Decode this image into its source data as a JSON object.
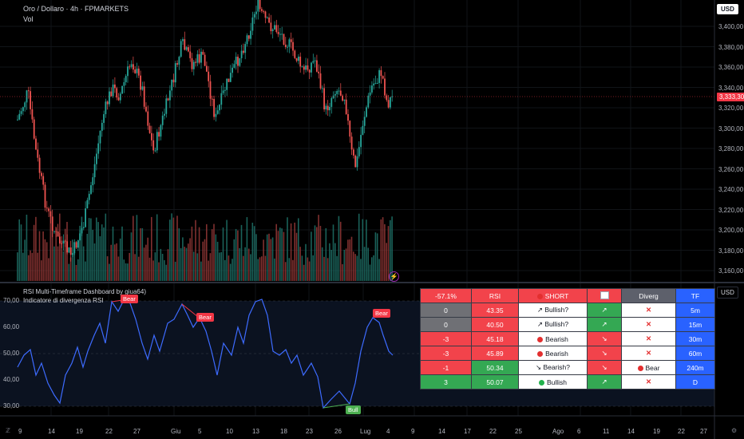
{
  "header": {
    "symbol_line": "Oro / Dollaro · 4h · FPMARKETS",
    "vol_label": "Vol"
  },
  "currency_buttons": {
    "main": "USD",
    "rsi": "USD"
  },
  "price_axis": {
    "labels": [
      "3,400,00",
      "3,380,00",
      "3,360,00",
      "3,340,00",
      "3,320,00",
      "3,300,00",
      "3,280,00",
      "3,260,00",
      "3,240,00",
      "3,220,00",
      "3,200,00",
      "3,180,00",
      "3,160,00"
    ],
    "current_price": "3,333,30"
  },
  "rsi_pane": {
    "title_line1": "RSI Multi-Timeframe Dashboard by giua64)",
    "title_line2": "Indicatore di divergenza RSI",
    "axis_labels": [
      "70,00",
      "60,00",
      "50,00",
      "40,00",
      "30,00"
    ],
    "divergence_labels": [
      {
        "text": "Bear",
        "kind": "bear"
      },
      {
        "text": "Bear",
        "kind": "bear"
      },
      {
        "text": "Bear",
        "kind": "bear"
      },
      {
        "text": "Bull",
        "kind": "bull"
      }
    ]
  },
  "time_axis": {
    "labels": [
      "9",
      "14",
      "19",
      "22",
      "27",
      "Giu",
      "5",
      "10",
      "13",
      "18",
      "23",
      "26",
      "Lug",
      "4",
      "9",
      "14",
      "17",
      "22",
      "25",
      "Ago",
      "6",
      "11",
      "14",
      "19",
      "22",
      "27"
    ]
  },
  "dashboard": {
    "header": [
      "-57.1%",
      "RSI",
      "SHORT",
      "📈",
      "Diverg",
      "TF"
    ],
    "rows": [
      {
        "score": "0",
        "rsi": "43.35",
        "signal": "↗ Bullish?",
        "arrow": "↗",
        "diverg": "✕",
        "tf": "5m",
        "score_color": "grey",
        "rsi_color": "red",
        "arrow_color": "green",
        "dot": ""
      },
      {
        "score": "0",
        "rsi": "40.50",
        "signal": "↗ Bullish?",
        "arrow": "↗",
        "diverg": "✕",
        "tf": "15m",
        "score_color": "grey",
        "rsi_color": "red",
        "arrow_color": "green",
        "dot": ""
      },
      {
        "score": "-3",
        "rsi": "45.18",
        "signal": "Bearish",
        "arrow": "↘",
        "diverg": "✕",
        "tf": "30m",
        "score_color": "red",
        "rsi_color": "red",
        "arrow_color": "red",
        "dot": "red"
      },
      {
        "score": "-3",
        "rsi": "45.89",
        "signal": "Bearish",
        "arrow": "↘",
        "diverg": "✕",
        "tf": "60m",
        "score_color": "red",
        "rsi_color": "red",
        "arrow_color": "red",
        "dot": "red"
      },
      {
        "score": "-1",
        "rsi": "50.34",
        "signal": "↘ Bearish?",
        "arrow": "↘",
        "diverg": "Bear",
        "tf": "240m",
        "score_color": "red",
        "rsi_color": "green",
        "arrow_color": "red",
        "dot": ""
      },
      {
        "score": "3",
        "rsi": "50.07",
        "signal": "Bullish",
        "arrow": "↗",
        "diverg": "✕",
        "tf": "D",
        "score_color": "green",
        "rsi_color": "green",
        "arrow_color": "green",
        "dot": "green"
      }
    ]
  },
  "colors": {
    "bull": "#26a69a",
    "bear": "#ef5350",
    "rsi_line": "#3d6bff",
    "rsi_label_bear": "#f23645",
    "rsi_label_bull": "#4caf50"
  }
}
